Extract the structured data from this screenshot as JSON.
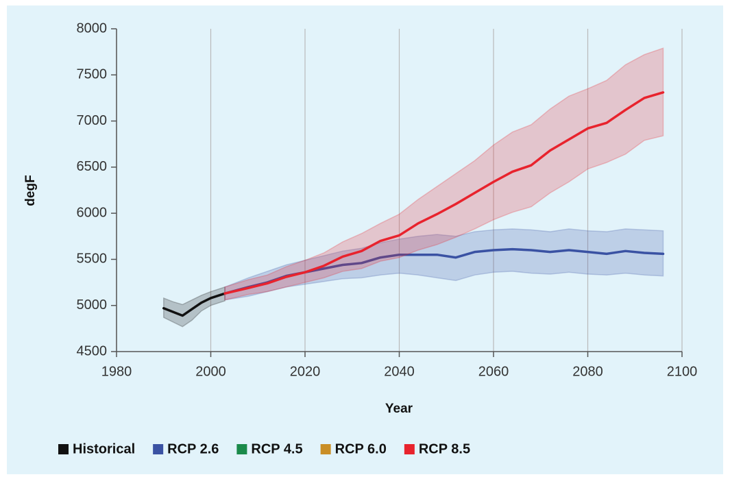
{
  "chart_data": {
    "type": "line",
    "xlabel": "Year",
    "ylabel": "degF",
    "xlim": [
      1980,
      2100
    ],
    "xticks": [
      1980,
      2000,
      2020,
      2040,
      2060,
      2080,
      2100
    ],
    "ylim": [
      4500,
      8000
    ],
    "yticks": [
      4500,
      5000,
      5500,
      6000,
      6500,
      7000,
      7500,
      8000
    ],
    "grid": "x",
    "legend": "bottom",
    "series": [
      {
        "name": "Historical",
        "color": "#111111",
        "x": [
          1990,
          1992,
          1994,
          1996,
          1998,
          2000,
          2003
        ],
        "values": [
          4970,
          4930,
          4890,
          4960,
          5030,
          5080,
          5130
        ],
        "lower": [
          4870,
          4820,
          4770,
          4840,
          4940,
          5000,
          5050
        ],
        "upper": [
          5080,
          5040,
          5010,
          5060,
          5110,
          5150,
          5200
        ]
      },
      {
        "name": "RCP 2.6",
        "color": "#3a52a3",
        "x": [
          2003,
          2008,
          2012,
          2016,
          2020,
          2024,
          2028,
          2032,
          2036,
          2040,
          2044,
          2048,
          2052,
          2056,
          2060,
          2064,
          2068,
          2072,
          2076,
          2080,
          2084,
          2088,
          2092,
          2096
        ],
        "values": [
          5130,
          5200,
          5250,
          5320,
          5360,
          5400,
          5440,
          5460,
          5520,
          5550,
          5550,
          5550,
          5520,
          5580,
          5600,
          5610,
          5600,
          5580,
          5600,
          5580,
          5560,
          5590,
          5570,
          5560
        ],
        "lower": [
          5060,
          5100,
          5150,
          5200,
          5230,
          5260,
          5290,
          5300,
          5330,
          5350,
          5330,
          5300,
          5270,
          5330,
          5360,
          5370,
          5350,
          5340,
          5360,
          5340,
          5330,
          5350,
          5330,
          5320
        ],
        "upper": [
          5200,
          5300,
          5370,
          5440,
          5490,
          5540,
          5590,
          5620,
          5680,
          5720,
          5750,
          5770,
          5750,
          5800,
          5820,
          5830,
          5820,
          5800,
          5830,
          5810,
          5800,
          5830,
          5820,
          5810
        ]
      },
      {
        "name": "RCP 4.5",
        "color": "#1a8a4a",
        "x": [],
        "values": [],
        "lower": [],
        "upper": []
      },
      {
        "name": "RCP 6.0",
        "color": "#c98e26",
        "x": [],
        "values": [],
        "lower": [],
        "upper": []
      },
      {
        "name": "RCP 8.5",
        "color": "#e8232d",
        "x": [
          2003,
          2008,
          2012,
          2016,
          2020,
          2024,
          2028,
          2032,
          2036,
          2040,
          2044,
          2048,
          2052,
          2056,
          2060,
          2064,
          2068,
          2072,
          2076,
          2080,
          2084,
          2088,
          2092,
          2096
        ],
        "values": [
          5130,
          5190,
          5240,
          5310,
          5360,
          5430,
          5530,
          5590,
          5700,
          5760,
          5890,
          5990,
          6100,
          6220,
          6340,
          6450,
          6520,
          6680,
          6800,
          6920,
          6980,
          7120,
          7250,
          7310
        ],
        "lower": [
          5060,
          5120,
          5150,
          5200,
          5250,
          5300,
          5370,
          5400,
          5480,
          5520,
          5600,
          5660,
          5740,
          5830,
          5930,
          6010,
          6070,
          6220,
          6340,
          6480,
          6550,
          6640,
          6790,
          6840
        ],
        "upper": [
          5200,
          5280,
          5330,
          5420,
          5490,
          5570,
          5690,
          5780,
          5890,
          5990,
          6150,
          6290,
          6430,
          6570,
          6740,
          6880,
          6960,
          7130,
          7270,
          7350,
          7440,
          7610,
          7720,
          7790
        ]
      }
    ]
  }
}
